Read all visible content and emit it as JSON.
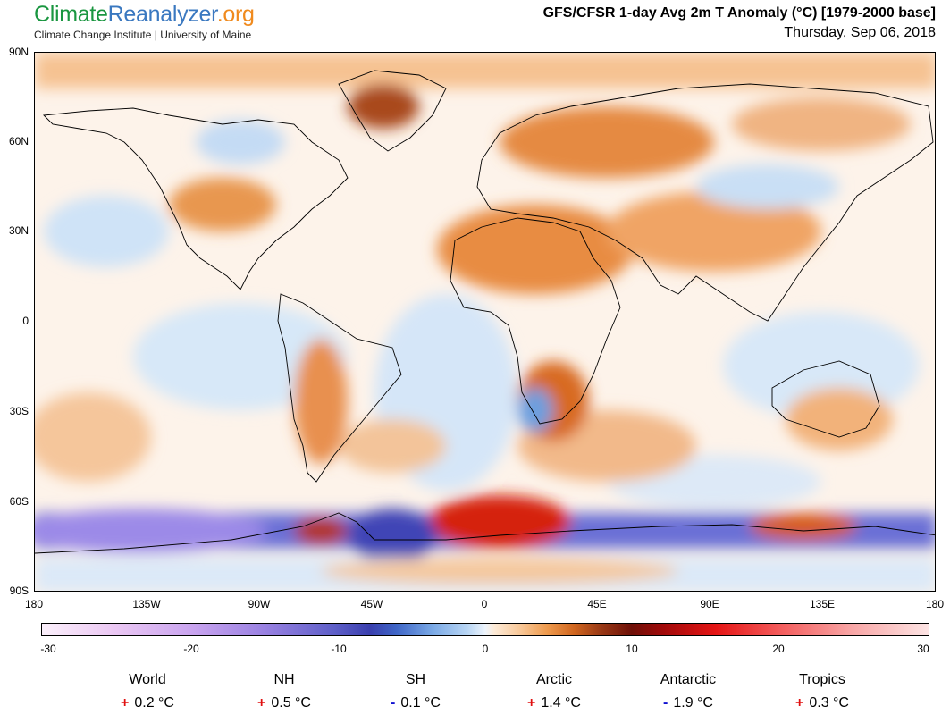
{
  "header": {
    "brand_part1": "Climate",
    "brand_part2": "Reanalyzer",
    "brand_part3": ".org",
    "subbrand": "Climate Change Institute | University of Maine",
    "title": "GFS/CFSR 1-day Avg 2m T Anomaly (°C) [1979-2000 base]",
    "date": "Thursday, Sep 06, 2018"
  },
  "map": {
    "lat_ticks": [
      "90N",
      "60N",
      "30N",
      "0",
      "30S",
      "60S",
      "90S"
    ],
    "lon_ticks": [
      "180",
      "135W",
      "90W",
      "45W",
      "0",
      "45E",
      "90E",
      "135E",
      "180"
    ]
  },
  "colorbar": {
    "ticks": [
      "-30",
      "-20",
      "-10",
      "0",
      "10",
      "20",
      "30"
    ]
  },
  "stats": [
    {
      "name": "World",
      "sign": "+",
      "value": "0.2 °C",
      "sign_color": "#e01010"
    },
    {
      "name": "NH",
      "sign": "+",
      "value": "0.5 °C",
      "sign_color": "#e01010"
    },
    {
      "name": "SH",
      "sign": "-",
      "value": "0.1 °C",
      "sign_color": "#1010d0"
    },
    {
      "name": "Arctic",
      "sign": "+",
      "value": "1.4 °C",
      "sign_color": "#e01010"
    },
    {
      "name": "Antarctic",
      "sign": "-",
      "value": "1.9 °C",
      "sign_color": "#1010d0"
    },
    {
      "name": "Tropics",
      "sign": "+",
      "value": "0.3 °C",
      "sign_color": "#e01010"
    }
  ]
}
